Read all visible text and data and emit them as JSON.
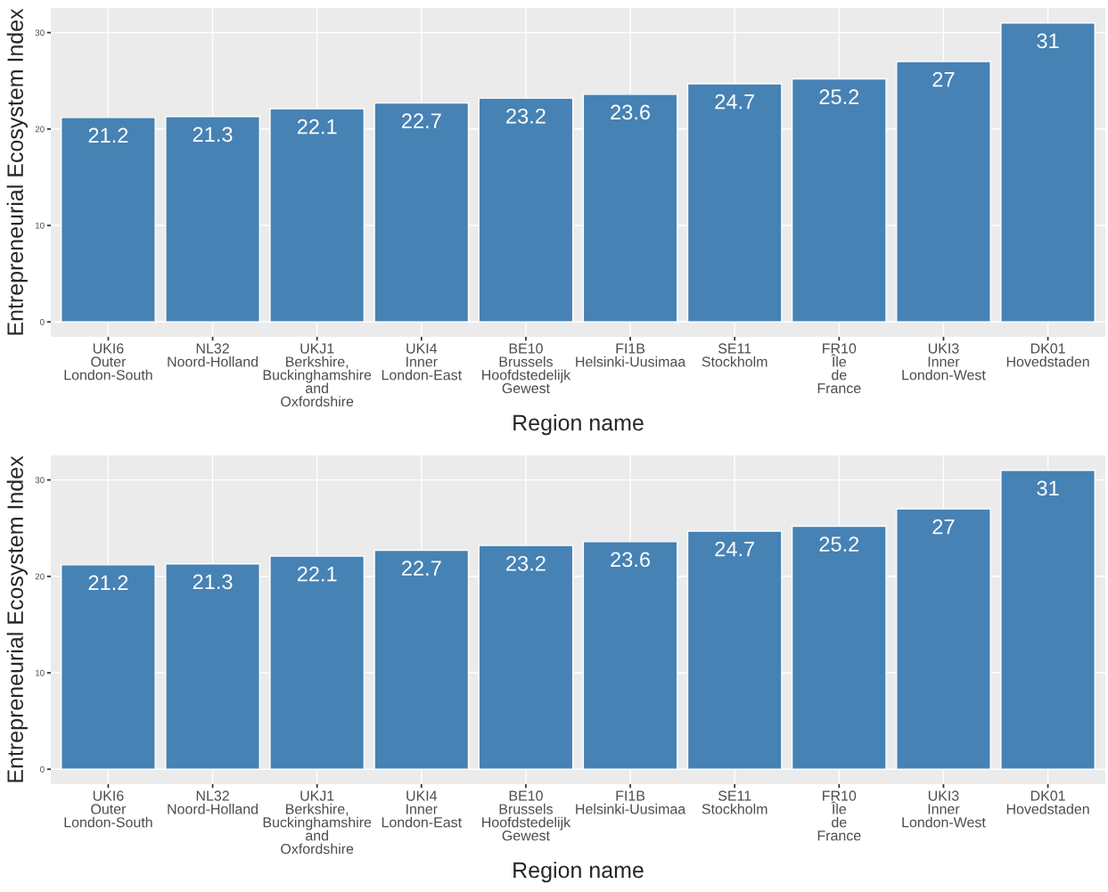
{
  "chart_data": [
    {
      "type": "bar",
      "xlabel": "Region name",
      "ylabel": "Entrepreneurial Ecosystem Index",
      "categories": [
        "UKI6\nOuter\nLondon-South",
        "NL32\nNoord-Holland",
        "UKJ1\nBerkshire,\nBuckinghamshire\nand\nOxfordshire",
        "UKI4\nInner\nLondon-East",
        "BE10\nBrussels\nHoofdstedelijk\nGewest",
        "FI1B\nHelsinki-Uusimaa",
        "SE11\nStockholm",
        "FR10\nÎle\nde\nFrance",
        "UKI3\nInner\nLondon-West",
        "DK01\nHovedstaden"
      ],
      "values": [
        21.2,
        21.3,
        22.1,
        22.7,
        23.2,
        23.6,
        24.7,
        25.2,
        27,
        31
      ],
      "color": "#4682b4",
      "ylim": [
        -1.55,
        32.55
      ],
      "yticks": [
        0,
        10,
        20,
        30
      ],
      "grid": true,
      "data_labels": true
    },
    {
      "type": "bar",
      "xlabel": "Region name",
      "ylabel": "Entrepreneurial Ecosystem Index",
      "categories": [
        "UKI6\nOuter\nLondon-South",
        "NL32\nNoord-Holland",
        "UKJ1\nBerkshire,\nBuckinghamshire\nand\nOxfordshire",
        "UKI4\nInner\nLondon-East",
        "BE10\nBrussels\nHoofdstedelijk\nGewest",
        "FI1B\nHelsinki-Uusimaa",
        "SE11\nStockholm",
        "FR10\nÎle\nde\nFrance",
        "UKI3\nInner\nLondon-West",
        "DK01\nHovedstaden"
      ],
      "values": [
        21.2,
        21.3,
        22.1,
        22.7,
        23.2,
        23.6,
        24.7,
        25.2,
        27,
        31
      ],
      "color": "#4682b4",
      "ylim": [
        -1.55,
        32.55
      ],
      "yticks": [
        0,
        10,
        20,
        30
      ],
      "grid": true,
      "data_labels": true
    }
  ]
}
